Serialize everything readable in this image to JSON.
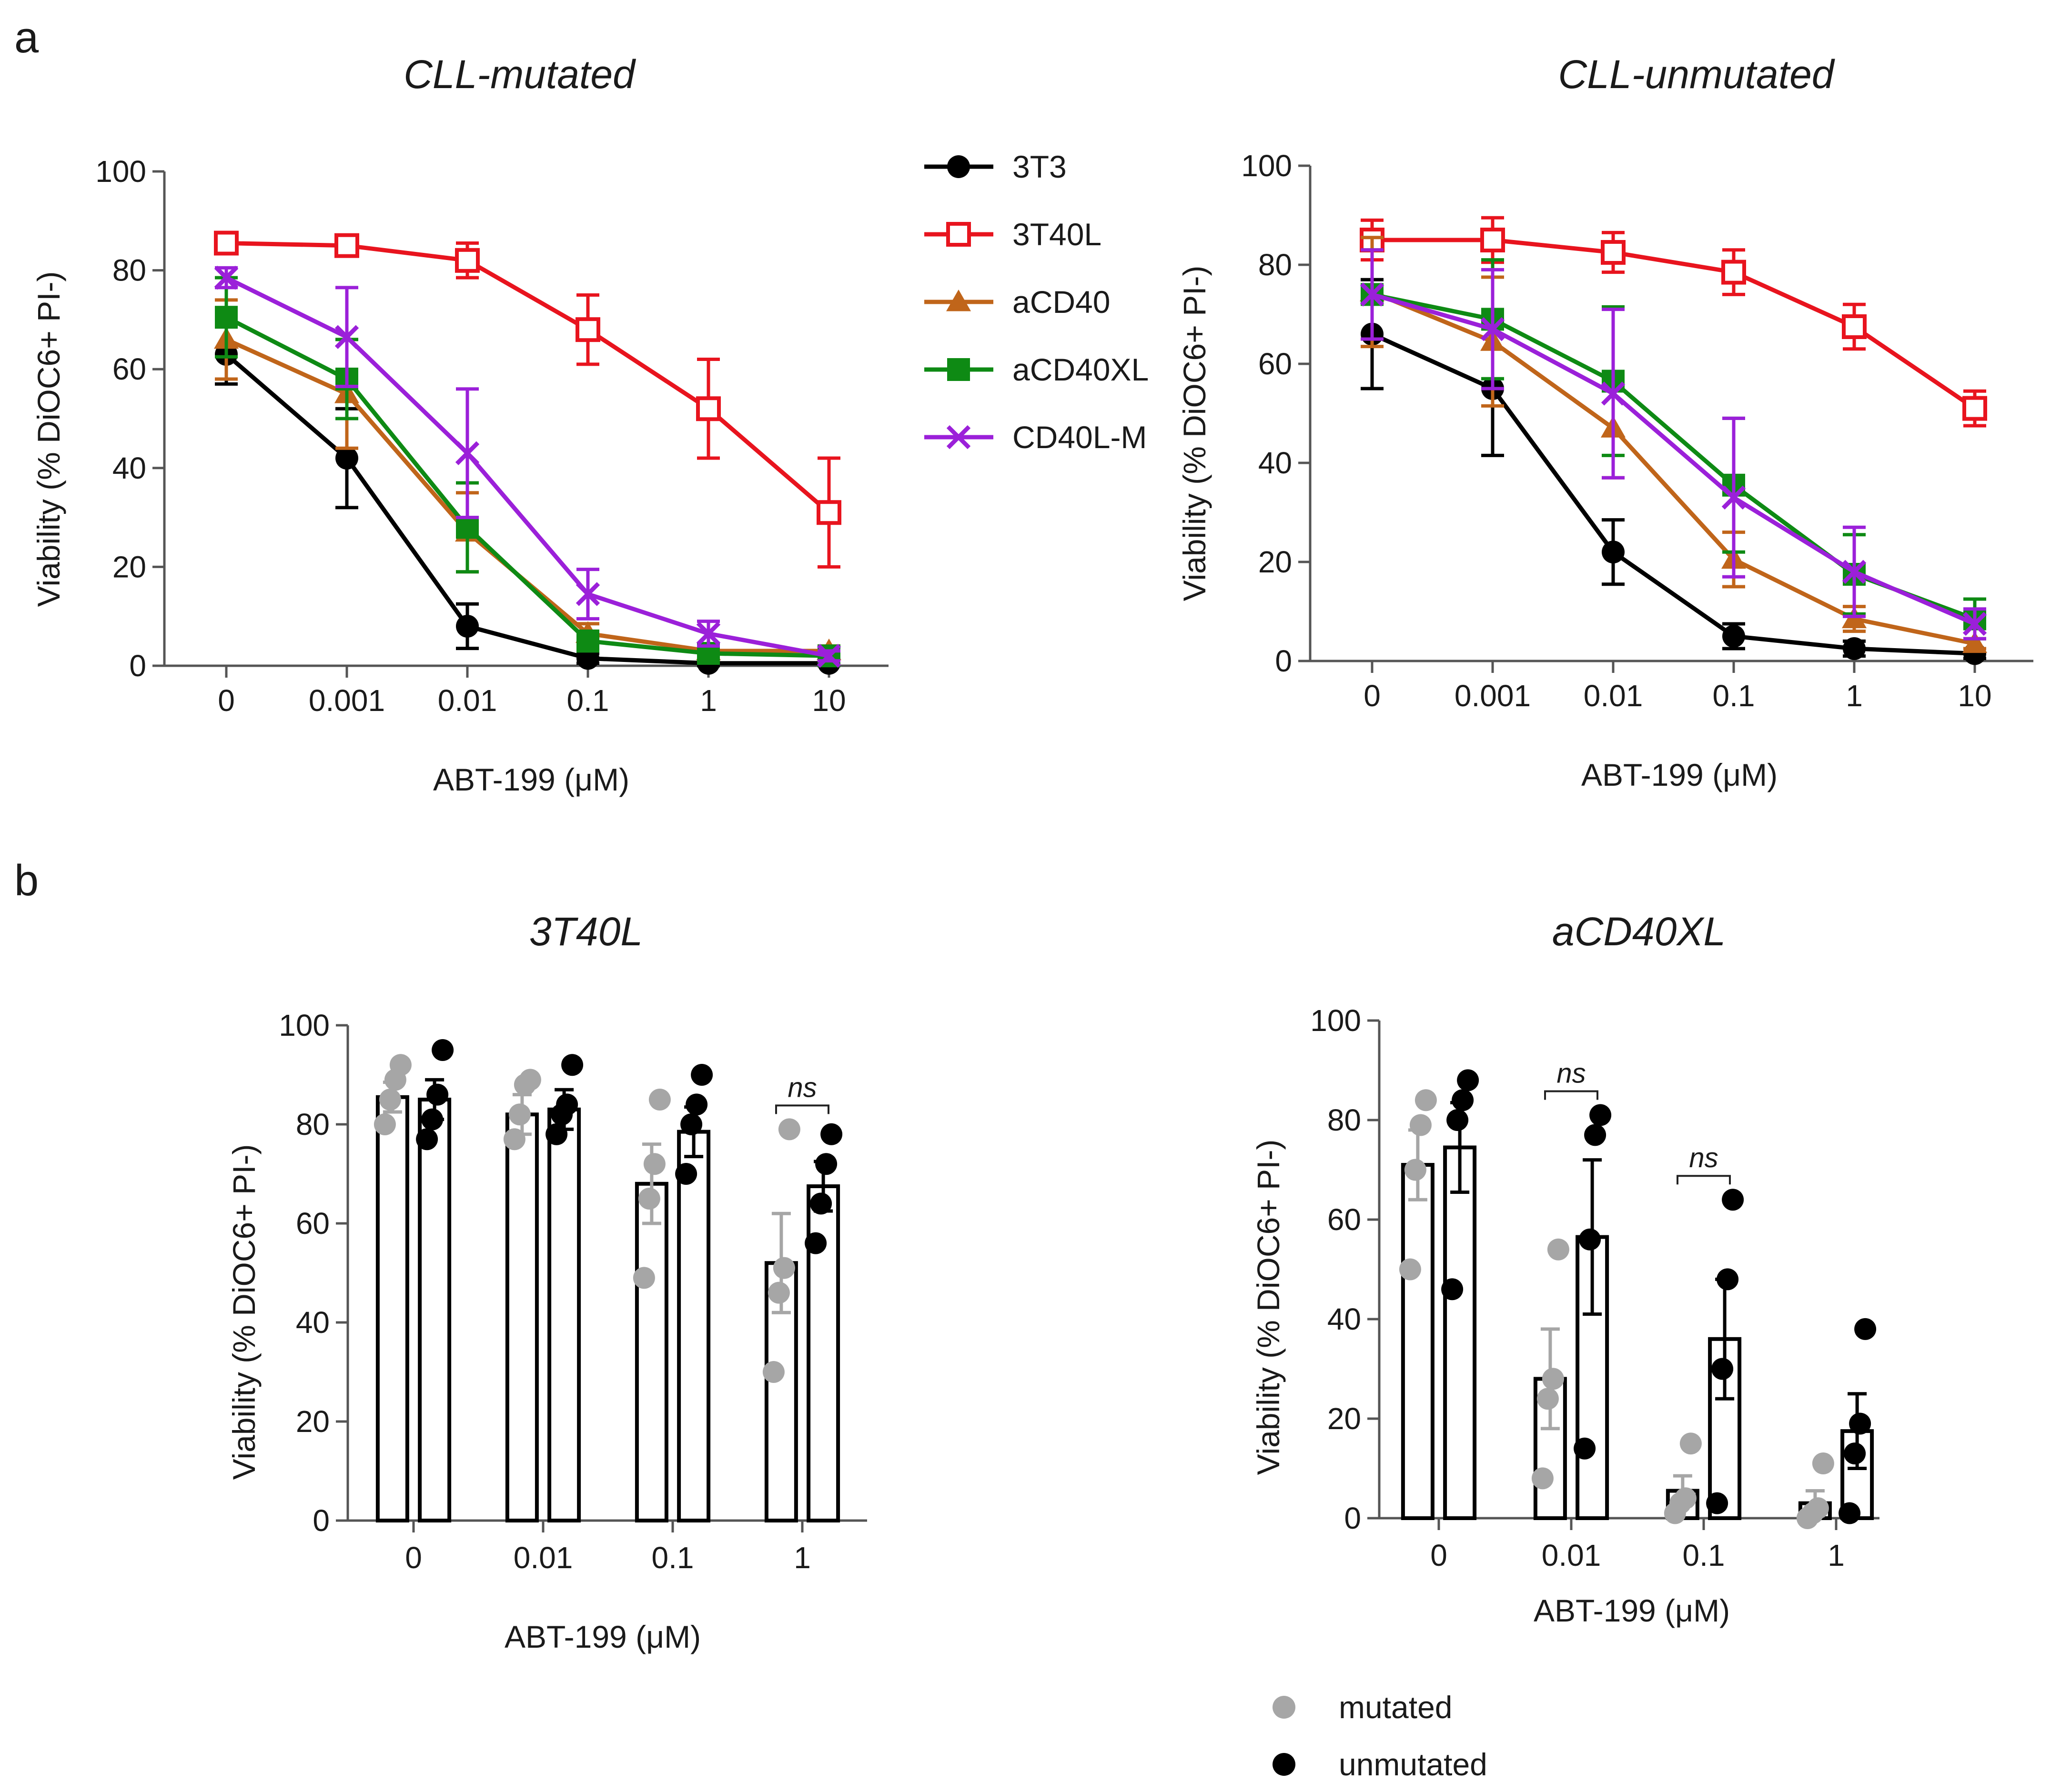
{
  "figure": {
    "panel_a_label": "a",
    "panel_b_label": "b"
  },
  "colors": {
    "3T3": "#000000",
    "3T40L": "#e8141e",
    "aCD40": "#c0651a",
    "aCD40XL": "#0e8a14",
    "CD40L-M": "#9b20d9",
    "mutated": "#a6a6a6",
    "unmutated": "#000000"
  },
  "chart_data": [
    {
      "id": "a1",
      "type": "line",
      "title": "CLL-mutated",
      "xlabel": "ABT-199 (μM)",
      "ylabel": "Viability (% DiOC6+ PI-)",
      "x_categories": [
        "0",
        "0.001",
        "0.01",
        "0.1",
        "1",
        "10"
      ],
      "ylim": [
        0,
        100
      ],
      "yticks": [
        "0",
        "20",
        "40",
        "60",
        "80",
        "100"
      ],
      "series": [
        {
          "name": "3T3",
          "marker": "circle",
          "values": [
            63,
            42,
            8,
            1.5,
            0.5,
            0.5
          ],
          "err": [
            6,
            10,
            4.5,
            1,
            0.5,
            0.5
          ]
        },
        {
          "name": "3T40L",
          "marker": "square-open",
          "values": [
            85.5,
            85,
            82,
            68,
            52,
            31
          ],
          "err": [
            1.5,
            1.5,
            3.5,
            7,
            10,
            11
          ]
        },
        {
          "name": "aCD40",
          "marker": "triangle",
          "values": [
            66,
            55,
            27,
            6.5,
            3,
            3
          ],
          "err": [
            8,
            11,
            8,
            2,
            1,
            1
          ]
        },
        {
          "name": "aCD40XL",
          "marker": "square",
          "values": [
            70.5,
            58,
            28,
            5,
            2.5,
            2
          ],
          "err": [
            8,
            8,
            9,
            2,
            1,
            1
          ]
        },
        {
          "name": "CD40L-M",
          "marker": "cross",
          "values": [
            78.5,
            66.5,
            43,
            14.5,
            6.5,
            2
          ],
          "err": [
            2,
            10,
            13,
            5,
            2.5,
            1
          ]
        }
      ],
      "legend": [
        "3T3",
        "3T40L",
        "aCD40",
        "aCD40XL",
        "CD40L-M"
      ]
    },
    {
      "id": "a2",
      "type": "line",
      "title": "CLL-unmutated",
      "xlabel": "ABT-199 (μM)",
      "ylabel": "Viability (% DiOC6+ PI-)",
      "x_categories": [
        "0",
        "0.001",
        "0.01",
        "0.1",
        "1",
        "10"
      ],
      "ylim": [
        0,
        100
      ],
      "yticks": [
        "0",
        "20",
        "40",
        "60",
        "80",
        "100"
      ],
      "series": [
        {
          "name": "3T3",
          "marker": "circle",
          "values": [
            66,
            55,
            22,
            5,
            2.5,
            1.5
          ],
          "err": [
            11,
            13.5,
            6.5,
            2.5,
            1.5,
            1
          ]
        },
        {
          "name": "3T40L",
          "marker": "square-open",
          "values": [
            85,
            85,
            82.5,
            78.5,
            67.5,
            51
          ],
          "err": [
            4,
            4.5,
            4,
            4.5,
            4.5,
            3.5
          ]
        },
        {
          "name": "aCD40",
          "marker": "triangle",
          "values": [
            74.5,
            64.5,
            47,
            20.5,
            8.5,
            3.5
          ],
          "err": [
            11,
            13,
            10,
            5.5,
            2.5,
            1
          ]
        },
        {
          "name": "aCD40XL",
          "marker": "square",
          "values": [
            74,
            69,
            56.5,
            35.5,
            17.5,
            8.5
          ],
          "err": [
            9,
            12,
            15,
            13.5,
            8,
            4
          ]
        },
        {
          "name": "CD40L-M",
          "marker": "cross",
          "values": [
            74,
            67,
            54,
            33,
            18,
            7.5
          ],
          "err": [
            9,
            12,
            17,
            16,
            9,
            3
          ]
        }
      ]
    },
    {
      "id": "b1",
      "type": "bar",
      "title": "3T40L",
      "xlabel": "ABT-199 (μM)",
      "ylabel": "Viability (% DiOC6+ PI-)",
      "categories": [
        "0",
        "0.01",
        "0.1",
        "1"
      ],
      "ylim": [
        0,
        100
      ],
      "yticks": [
        "0",
        "20",
        "40",
        "60",
        "80",
        "100"
      ],
      "series": [
        {
          "name": "mutated",
          "values": [
            85.5,
            82,
            68,
            52
          ],
          "err": [
            3,
            4,
            8,
            10
          ],
          "points": [
            [
              80,
              85,
              89,
              92
            ],
            [
              77,
              82,
              88,
              89
            ],
            [
              49,
              65,
              72,
              85
            ],
            [
              30,
              46,
              51,
              79
            ]
          ]
        },
        {
          "name": "unmutated",
          "values": [
            85,
            83,
            78.5,
            67.5
          ],
          "err": [
            4,
            4,
            5,
            5
          ],
          "points": [
            [
              77,
              81,
              86,
              95
            ],
            [
              78,
              82,
              84,
              92
            ],
            [
              70,
              80,
              84,
              90
            ],
            [
              56,
              64,
              72,
              78
            ]
          ]
        }
      ],
      "annotations": [
        {
          "label": "ns",
          "category_index": 3
        }
      ]
    },
    {
      "id": "b2",
      "type": "bar",
      "title": "aCD40XL",
      "xlabel": "ABT-199 (μM)",
      "ylabel": "Viability (% DiOC6+ PI-)",
      "categories": [
        "0",
        "0.01",
        "0.1",
        "1"
      ],
      "ylim": [
        0,
        100
      ],
      "yticks": [
        "0",
        "20",
        "40",
        "60",
        "80",
        "100"
      ],
      "series": [
        {
          "name": "mutated",
          "values": [
            71,
            28,
            5.5,
            3
          ],
          "err": [
            7,
            10,
            3,
            2.5
          ],
          "points": [
            [
              50,
              70,
              79,
              84
            ],
            [
              8,
              24,
              28,
              54
            ],
            [
              1,
              3,
              4,
              15
            ],
            [
              0,
              1,
              2,
              11
            ]
          ]
        },
        {
          "name": "unmutated",
          "values": [
            74.5,
            56.5,
            36,
            17.5
          ],
          "err": [
            9,
            15.5,
            12,
            7.5
          ],
          "points": [
            [
              46,
              80,
              84,
              88
            ],
            [
              14,
              56,
              77,
              81
            ],
            [
              3,
              30,
              48,
              64
            ],
            [
              1,
              13,
              19,
              38
            ]
          ]
        }
      ],
      "annotations": [
        {
          "label": "ns",
          "category_index": 1
        },
        {
          "label": "ns",
          "category_index": 2
        }
      ]
    }
  ],
  "bottom_legend": {
    "mutated": "mutated",
    "unmutated": "unmutated"
  }
}
